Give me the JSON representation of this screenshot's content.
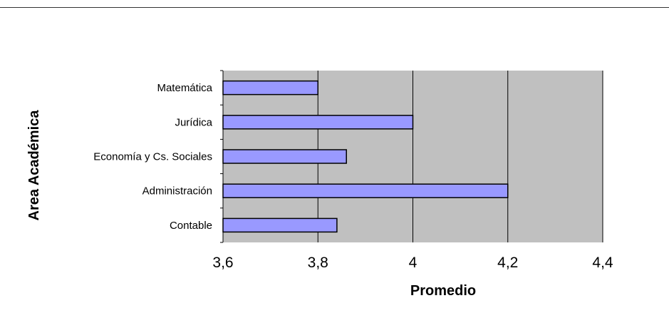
{
  "chart_data": {
    "type": "bar",
    "orientation": "horizontal",
    "categories": [
      "Matemática",
      "Jurídica",
      "Economía y Cs. Sociales",
      "Administración",
      "Contable"
    ],
    "values": [
      3.8,
      4.0,
      3.86,
      4.2,
      3.84
    ],
    "xlabel": "Promedio",
    "ylabel": "Area Académica",
    "xlim": [
      3.6,
      4.4
    ],
    "xticks": [
      "3,6",
      "3,8",
      "4",
      "4,2",
      "4,4"
    ],
    "grid": "vertical",
    "legend": "none",
    "colors": {
      "bar_fill": "#9999ff",
      "bar_stroke": "#000000",
      "plot_bg": "#c0c0c0",
      "grid": "#000000"
    }
  }
}
